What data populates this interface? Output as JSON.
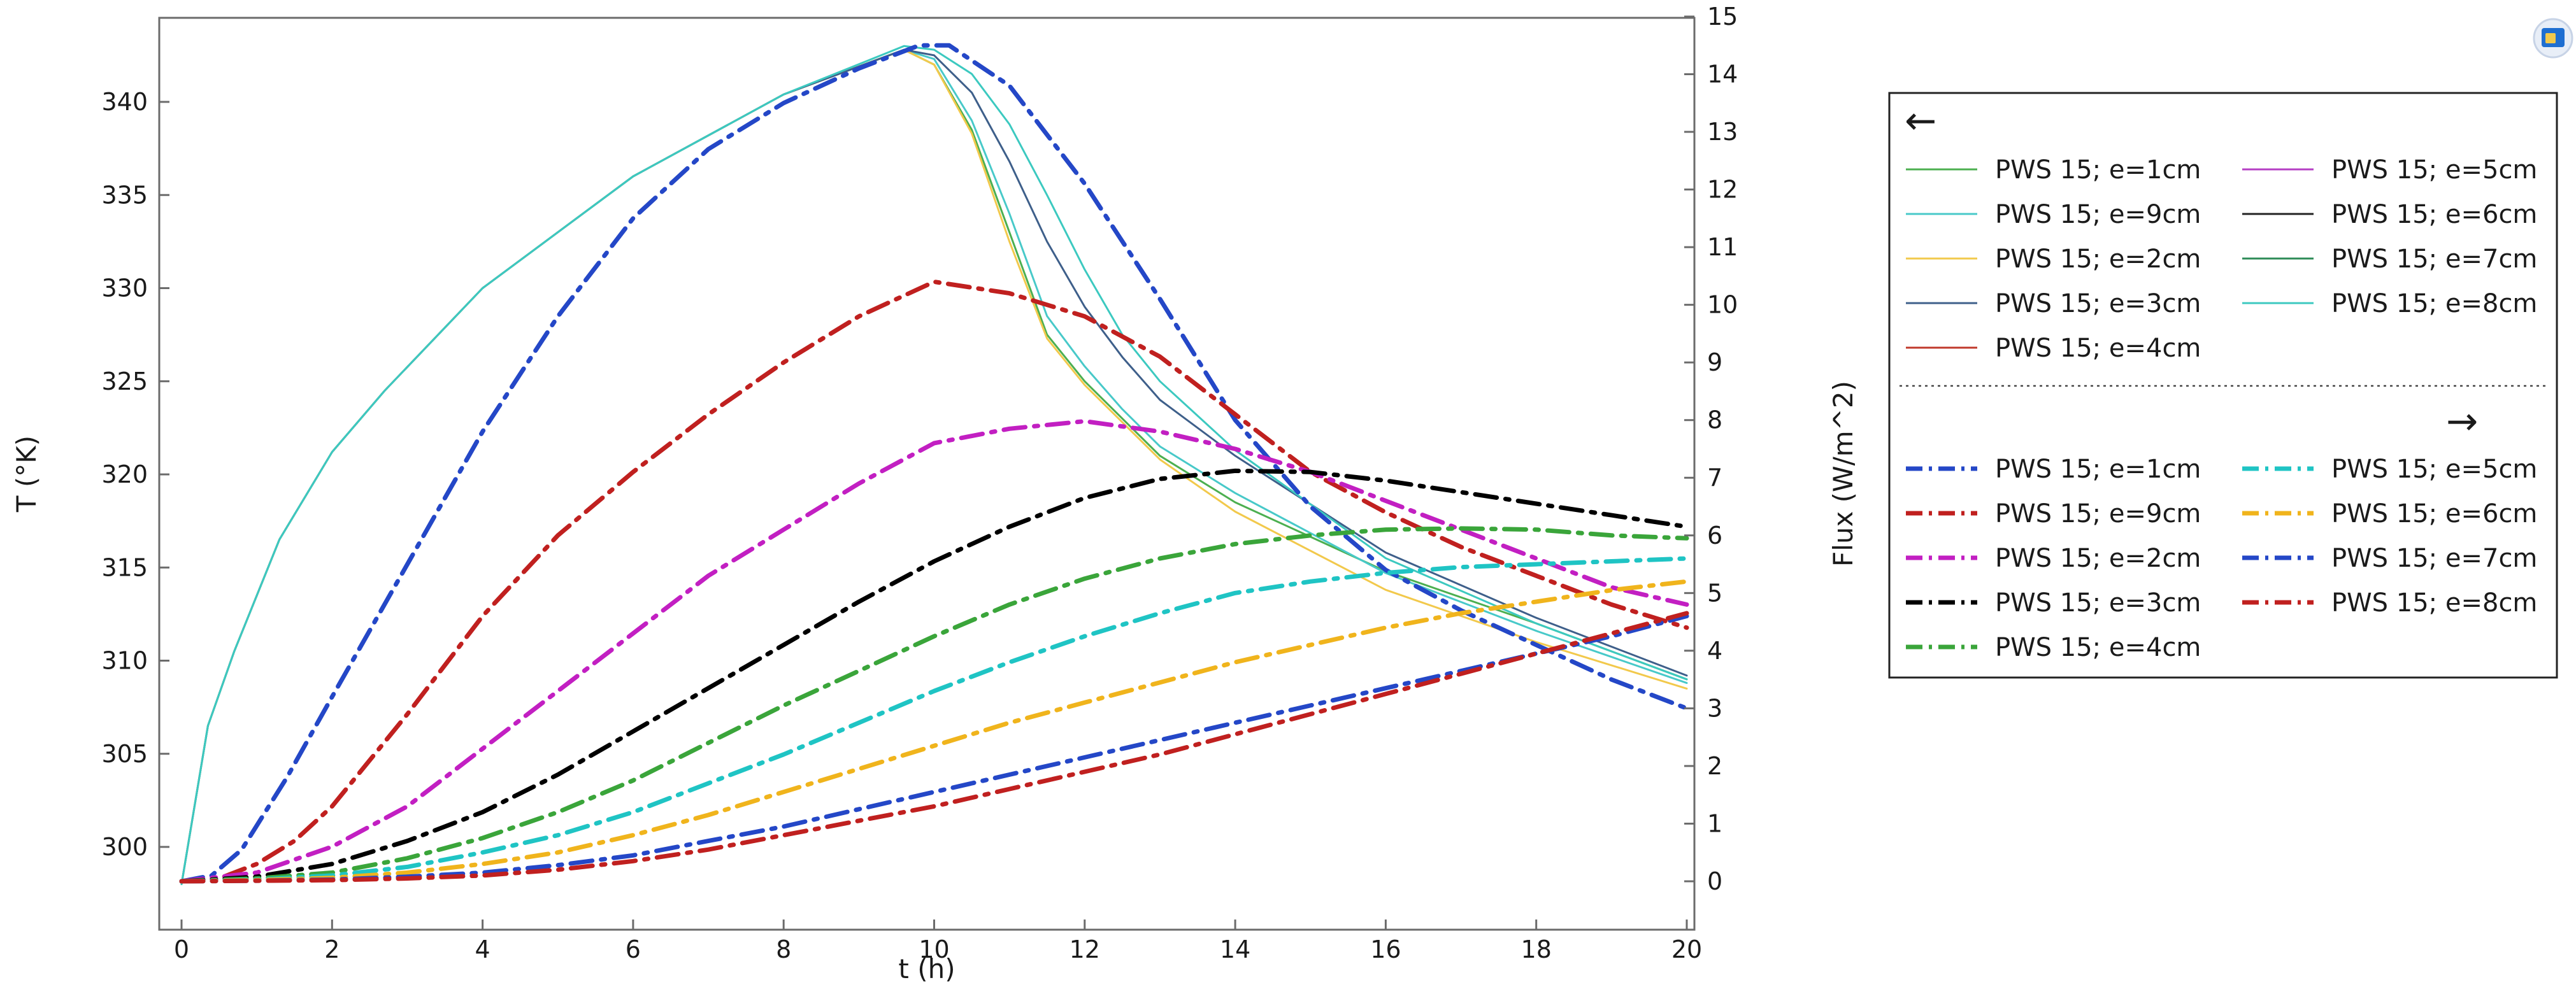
{
  "chart_data": {
    "type": "line",
    "xlabel": "t (h)",
    "ylabel_left": "T (°K)",
    "ylabel_right": "Flux (W/m^2)",
    "xlim": [
      0,
      20
    ],
    "ylim_left": [
      298,
      343
    ],
    "ylim_right": [
      0,
      15
    ],
    "x_ticks": [
      0,
      2,
      4,
      6,
      8,
      10,
      12,
      14,
      16,
      18,
      20
    ],
    "y_left_ticks": [
      300,
      305,
      310,
      315,
      320,
      325,
      330,
      335,
      340
    ],
    "y_right_ticks": [
      0,
      1,
      2,
      3,
      4,
      5,
      6,
      7,
      8,
      9,
      10,
      11,
      12,
      13,
      14,
      15
    ],
    "grid": false,
    "legend_placement": "outside-right",
    "legend": {
      "left_arrow": "←",
      "right_arrow": "→",
      "left_entries": [
        {
          "label": "PWS 15; e=1cm",
          "color": "#4caf50"
        },
        {
          "label": "PWS 15; e=9cm",
          "color": "#48c9c9"
        },
        {
          "label": "PWS 15; e=2cm",
          "color": "#f2c94c"
        },
        {
          "label": "PWS 15; e=3cm",
          "color": "#3e5f8a"
        },
        {
          "label": "PWS 15; e=4cm",
          "color": "#c0392b"
        },
        {
          "label": "PWS 15; e=5cm",
          "color": "#b53fc4"
        },
        {
          "label": "PWS 15; e=6cm",
          "color": "#222222"
        },
        {
          "label": "PWS 15; e=7cm",
          "color": "#2e8b57"
        },
        {
          "label": "PWS 15; e=8cm",
          "color": "#3cc9c0"
        }
      ],
      "right_entries": [
        {
          "label": "PWS 15; e=1cm",
          "color": "#2447c7"
        },
        {
          "label": "PWS 15; e=9cm",
          "color": "#c0201f"
        },
        {
          "label": "PWS 15; e=2cm",
          "color": "#c21fc2"
        },
        {
          "label": "PWS 15; e=3cm",
          "color": "#000000"
        },
        {
          "label": "PWS 15; e=4cm",
          "color": "#3aa53a"
        },
        {
          "label": "PWS 15; e=5cm",
          "color": "#1fc4c4"
        },
        {
          "label": "PWS 15; e=6cm",
          "color": "#f0b41c"
        },
        {
          "label": "PWS 15; e=7cm",
          "color": "#2447c7"
        },
        {
          "label": "PWS 15; e=8cm",
          "color": "#c0201f"
        }
      ]
    },
    "temperature_series": [
      {
        "name": "PWS 15; e=1cm",
        "color": "#4caf50",
        "axis": "left",
        "style": "solid",
        "x": [
          0,
          0.35,
          0.7,
          1.3,
          2,
          2.7,
          4,
          6,
          8,
          9.6,
          10,
          10.5,
          11,
          11.5,
          12,
          12.5,
          13,
          14,
          16,
          18,
          20
        ],
        "y": [
          298,
          306.5,
          310.5,
          316.5,
          321.2,
          324.5,
          330,
          336,
          340.4,
          342.8,
          342,
          338.5,
          333,
          327.5,
          325,
          323,
          321,
          318.5,
          314.8,
          312,
          309
        ]
      },
      {
        "name": "PWS 15; e=9cm",
        "color": "#48c9c9",
        "axis": "left",
        "style": "solid",
        "x": [
          0,
          0.35,
          0.7,
          1.3,
          2,
          2.7,
          4,
          6,
          8,
          9.6,
          10,
          10.5,
          11,
          11.5,
          12,
          12.5,
          13,
          14,
          16,
          18,
          20
        ],
        "y": [
          298,
          306.5,
          310.5,
          316.5,
          321.2,
          324.5,
          330,
          336,
          340.4,
          342.8,
          342.3,
          339,
          334,
          328.5,
          325.8,
          323.5,
          321.5,
          319,
          314.7,
          311.6,
          308.8
        ]
      },
      {
        "name": "PWS 15; e=2cm",
        "color": "#f2c94c",
        "axis": "left",
        "style": "solid",
        "x": [
          0,
          0.35,
          0.7,
          1.3,
          2,
          2.7,
          4,
          6,
          8,
          9.6,
          10,
          10.5,
          11,
          11.5,
          12,
          12.5,
          13,
          14,
          16,
          18,
          20
        ],
        "y": [
          298,
          306.5,
          310.5,
          316.5,
          321.2,
          324.5,
          330,
          336,
          340.4,
          342.8,
          342,
          338.3,
          332.5,
          327.3,
          324.8,
          322.8,
          320.8,
          318,
          313.8,
          311,
          308.5
        ]
      },
      {
        "name": "PWS 15; e=3cm",
        "color": "#3e5f8a",
        "axis": "left",
        "style": "solid",
        "x": [
          0,
          0.35,
          0.7,
          1.3,
          2,
          2.7,
          4,
          6,
          8,
          9.6,
          10,
          10.5,
          11,
          11.5,
          12,
          12.5,
          13,
          14,
          16,
          18,
          20
        ],
        "y": [
          298,
          306.5,
          310.5,
          316.5,
          321.2,
          324.5,
          330,
          336,
          340.4,
          342.8,
          342.5,
          340.5,
          336.8,
          332.5,
          329,
          326.3,
          324,
          321,
          315.8,
          312.3,
          309.2
        ]
      },
      {
        "name": "PWS 15; e=8cm",
        "color": "#3cc9c0",
        "axis": "left",
        "style": "solid",
        "x": [
          0,
          0.35,
          0.7,
          1.3,
          2,
          2.7,
          4,
          6,
          8,
          9.6,
          10,
          10.5,
          11,
          11.5,
          12,
          12.5,
          13,
          14,
          16,
          18,
          20
        ],
        "y": [
          298,
          306.5,
          310.5,
          316.5,
          321.2,
          324.5,
          330,
          336,
          340.4,
          343,
          342.8,
          341.5,
          338.8,
          335,
          331,
          327.5,
          325,
          321.3,
          315.5,
          312,
          309
        ]
      }
    ],
    "flux_series": [
      {
        "name": "PWS 15; e=1cm",
        "color": "#2447c7",
        "axis": "right",
        "style": "dashdot",
        "x": [
          0,
          0.4,
          0.8,
          1.4,
          2,
          3,
          4,
          5,
          6,
          7,
          8,
          9,
          9.8,
          10.2,
          11,
          12,
          13,
          14,
          15,
          16,
          17,
          18,
          19,
          20
        ],
        "y": [
          0,
          0.1,
          0.55,
          1.8,
          3.2,
          5.5,
          7.8,
          9.8,
          11.5,
          12.7,
          13.5,
          14.1,
          14.5,
          14.5,
          13.8,
          12.1,
          10.1,
          8,
          6.5,
          5.4,
          4.7,
          4.1,
          3.5,
          3
        ]
      },
      {
        "name": "PWS 15; e=9cm",
        "color": "#c0201f",
        "axis": "right",
        "style": "dashdot",
        "x": [
          0,
          0.5,
          1,
          1.5,
          2,
          3,
          4,
          5,
          6,
          7,
          8,
          9,
          10,
          11,
          12,
          13,
          14,
          15,
          16,
          17,
          18,
          19,
          20
        ],
        "y": [
          0,
          0.05,
          0.3,
          0.7,
          1.3,
          2.9,
          4.6,
          6.0,
          7.1,
          8.1,
          9.0,
          9.8,
          10.4,
          10.2,
          9.8,
          9.1,
          8.1,
          7.1,
          6.4,
          5.8,
          5.3,
          4.8,
          4.4
        ]
      },
      {
        "name": "PWS 15; e=2cm",
        "color": "#c21fc2",
        "axis": "right",
        "style": "dashdot",
        "x": [
          0,
          1,
          2,
          3,
          4,
          5,
          6,
          7,
          8,
          9,
          10,
          11,
          12,
          13,
          14,
          15,
          16,
          17,
          18,
          19,
          20
        ],
        "y": [
          0,
          0.15,
          0.6,
          1.3,
          2.3,
          3.3,
          4.3,
          5.3,
          6.1,
          6.9,
          7.6,
          7.85,
          7.98,
          7.8,
          7.5,
          7.1,
          6.6,
          6.1,
          5.6,
          5.1,
          4.8
        ]
      },
      {
        "name": "PWS 15; e=3cm",
        "color": "#000000",
        "axis": "right",
        "style": "dashdot",
        "x": [
          0,
          1,
          2,
          3,
          4,
          5,
          6,
          7,
          8,
          9,
          10,
          11,
          12,
          13,
          14,
          15,
          16,
          17,
          18,
          19,
          20
        ],
        "y": [
          0,
          0.08,
          0.3,
          0.7,
          1.2,
          1.85,
          2.6,
          3.35,
          4.1,
          4.85,
          5.55,
          6.15,
          6.65,
          6.98,
          7.12,
          7.1,
          6.95,
          6.75,
          6.55,
          6.35,
          6.15
        ]
      },
      {
        "name": "PWS 15; e=4cm",
        "color": "#3aa53a",
        "axis": "right",
        "style": "dashdot",
        "x": [
          0,
          1,
          2,
          3,
          4,
          5,
          6,
          7,
          8,
          9,
          10,
          11,
          12,
          13,
          14,
          15,
          16,
          17,
          18,
          19,
          20
        ],
        "y": [
          0,
          0.05,
          0.15,
          0.4,
          0.75,
          1.2,
          1.75,
          2.4,
          3.05,
          3.65,
          4.25,
          4.8,
          5.25,
          5.6,
          5.85,
          6.0,
          6.1,
          6.12,
          6.1,
          6.0,
          5.95
        ]
      },
      {
        "name": "PWS 15; e=5cm",
        "color": "#1fc4c4",
        "axis": "right",
        "style": "dashdot",
        "x": [
          0,
          1,
          2,
          3,
          4,
          5,
          6,
          7,
          8,
          9,
          10,
          11,
          12,
          13,
          14,
          15,
          16,
          17,
          18,
          19,
          20
        ],
        "y": [
          0,
          0.03,
          0.1,
          0.25,
          0.5,
          0.8,
          1.2,
          1.7,
          2.2,
          2.75,
          3.3,
          3.8,
          4.25,
          4.65,
          5.0,
          5.2,
          5.35,
          5.45,
          5.5,
          5.55,
          5.6
        ]
      },
      {
        "name": "PWS 15; e=6cm",
        "color": "#f0b41c",
        "axis": "right",
        "style": "dashdot",
        "x": [
          0,
          1,
          2,
          3,
          4,
          5,
          6,
          7,
          8,
          9,
          10,
          11,
          12,
          13,
          14,
          15,
          16,
          17,
          18,
          19,
          20
        ],
        "y": [
          0,
          0.02,
          0.06,
          0.15,
          0.3,
          0.5,
          0.8,
          1.15,
          1.55,
          1.95,
          2.35,
          2.75,
          3.1,
          3.45,
          3.8,
          4.1,
          4.4,
          4.65,
          4.85,
          5.05,
          5.2
        ]
      },
      {
        "name": "PWS 15; e=7cm",
        "color": "#2447c7",
        "axis": "right",
        "style": "dashdot",
        "x": [
          0,
          1,
          2,
          3,
          4,
          5,
          6,
          7,
          8,
          9,
          10,
          11,
          12,
          13,
          14,
          15,
          16,
          17,
          18,
          19,
          20
        ],
        "y": [
          0,
          0.01,
          0.03,
          0.08,
          0.15,
          0.28,
          0.45,
          0.7,
          0.95,
          1.25,
          1.55,
          1.85,
          2.15,
          2.45,
          2.75,
          3.05,
          3.35,
          3.65,
          3.95,
          4.25,
          4.6
        ]
      },
      {
        "name": "PWS 15; e=8cm",
        "color": "#c0201f",
        "axis": "right",
        "style": "dashdot",
        "x": [
          0,
          1,
          2,
          3,
          4,
          5,
          6,
          7,
          8,
          9,
          10,
          11,
          12,
          13,
          14,
          15,
          16,
          17,
          18,
          19,
          20
        ],
        "y": [
          0,
          0.01,
          0.02,
          0.05,
          0.1,
          0.2,
          0.35,
          0.55,
          0.8,
          1.05,
          1.3,
          1.6,
          1.9,
          2.2,
          2.55,
          2.9,
          3.25,
          3.6,
          3.95,
          4.3,
          4.65
        ]
      }
    ]
  },
  "toolbar": {
    "icon_name": "window-icon"
  }
}
